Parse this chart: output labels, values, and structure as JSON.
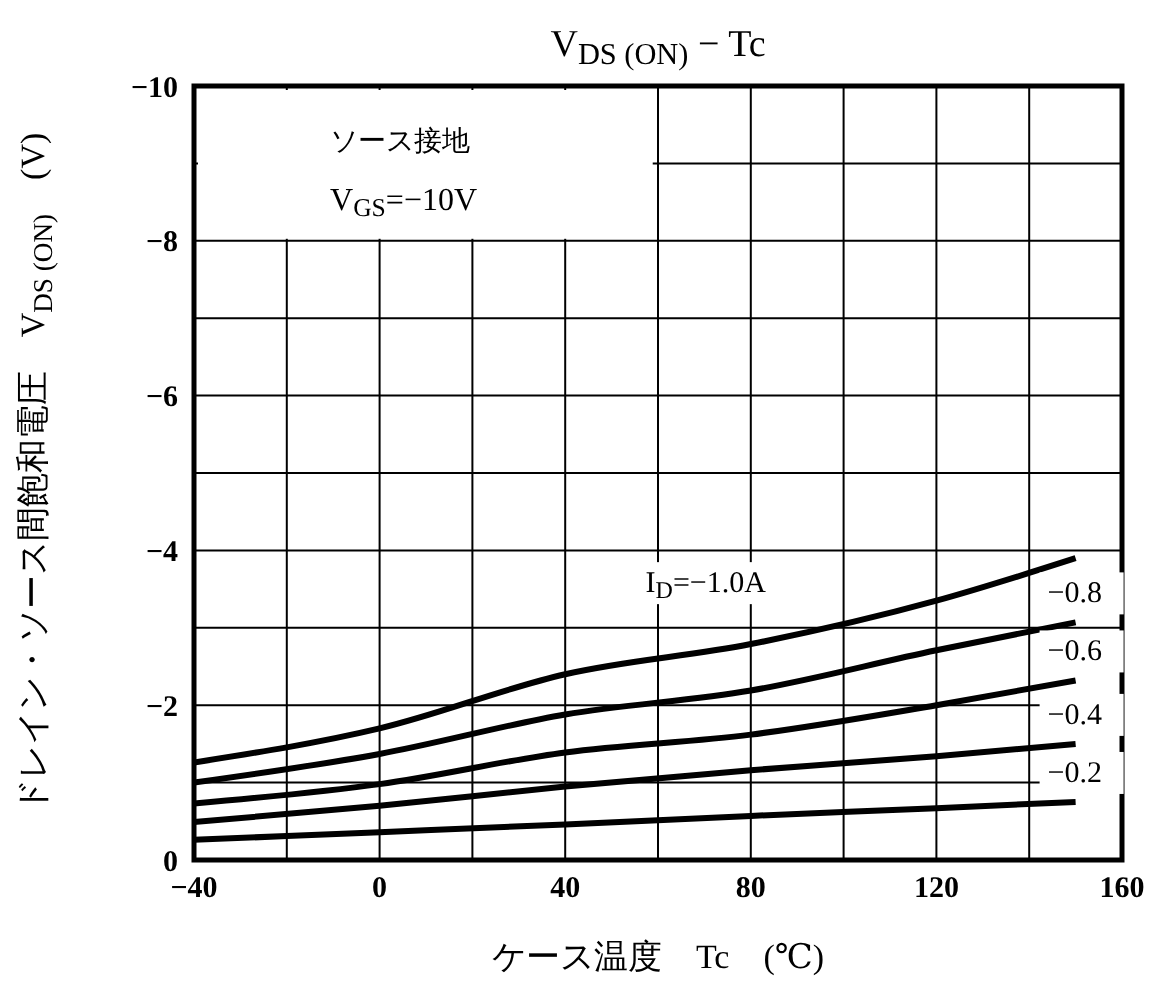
{
  "chart_data": {
    "type": "line",
    "title": "V$_{DS (ON)}$ − Tc",
    "xlabel": "ケース温度　Tc　(℃)",
    "ylabel": "ドレイン・ソース間飽和電圧　V$_{DS (ON)}$　(V)",
    "annotations": [
      "ソース接地",
      "V$_{GS}$=−10V"
    ],
    "x": [
      -40,
      0,
      40,
      80,
      120,
      150
    ],
    "series": [
      {
        "name": "I$_{D}$=−1.0A",
        "color": "#000000",
        "values": [
          -1.26,
          -1.7,
          -2.4,
          -2.79,
          -3.35,
          -3.9
        ]
      },
      {
        "name": "−0.8",
        "color": "#000000",
        "values": [
          -1.0,
          -1.37,
          -1.88,
          -2.19,
          -2.71,
          -3.07
        ]
      },
      {
        "name": "−0.6",
        "color": "#000000",
        "values": [
          -0.73,
          -0.98,
          -1.39,
          -1.62,
          -2.0,
          -2.32
        ]
      },
      {
        "name": "−0.4",
        "color": "#000000",
        "values": [
          -0.49,
          -0.7,
          -0.95,
          -1.16,
          -1.34,
          -1.5
        ]
      },
      {
        "name": "−0.2",
        "color": "#000000",
        "values": [
          -0.26,
          -0.36,
          -0.46,
          -0.57,
          -0.67,
          -0.75
        ]
      }
    ],
    "xlim": [
      -40,
      160
    ],
    "xticks": [
      -40,
      {
        "value": -20,
        "label": null
      },
      0,
      {
        "value": 20,
        "label": null
      },
      40,
      {
        "value": 60,
        "label": null
      },
      80,
      {
        "value": 100,
        "label": null
      },
      120,
      {
        "value": 140,
        "label": null
      },
      160
    ],
    "ylim": [
      0,
      -10
    ],
    "yticks": [
      0,
      {
        "value": -1,
        "label": null
      },
      -2,
      {
        "value": -3,
        "label": null
      },
      -4,
      {
        "value": -5,
        "label": null
      },
      -6,
      {
        "value": -7,
        "label": null
      },
      -8,
      {
        "value": -9,
        "label": null
      },
      -10
    ],
    "grid": true,
    "legend": false,
    "marker": "none",
    "line_style": "solid"
  }
}
